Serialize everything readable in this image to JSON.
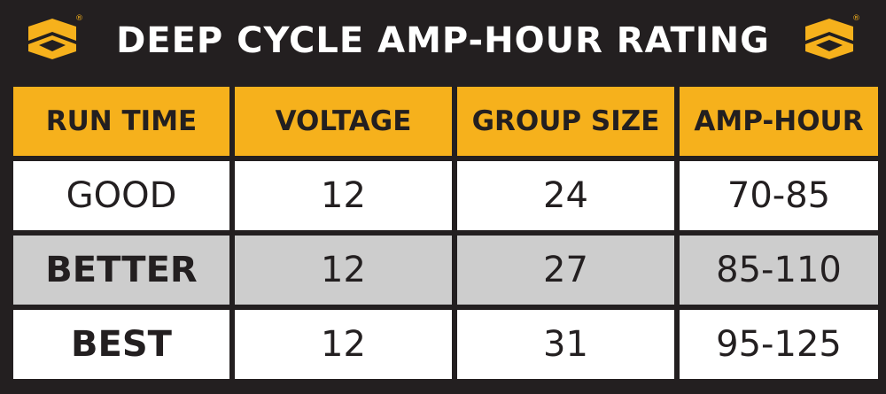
{
  "title": "DEEP CYCLE AMP-HOUR RATING",
  "logo": {
    "name": "brand-logo",
    "registered_mark": "®"
  },
  "colors": {
    "header": "#f6b11c",
    "frame": "#231f20",
    "row_white": "#ffffff",
    "row_grey": "#cdcdcd"
  },
  "table": {
    "headers": [
      "RUN TIME",
      "VOLTAGE",
      "GROUP SIZE",
      "AMP-HOUR"
    ],
    "rows": [
      [
        "GOOD",
        "12",
        "24",
        "70-85"
      ],
      [
        "BETTER",
        "12",
        "27",
        "85-110"
      ],
      [
        "BEST",
        "12",
        "31",
        "95-125"
      ]
    ]
  }
}
